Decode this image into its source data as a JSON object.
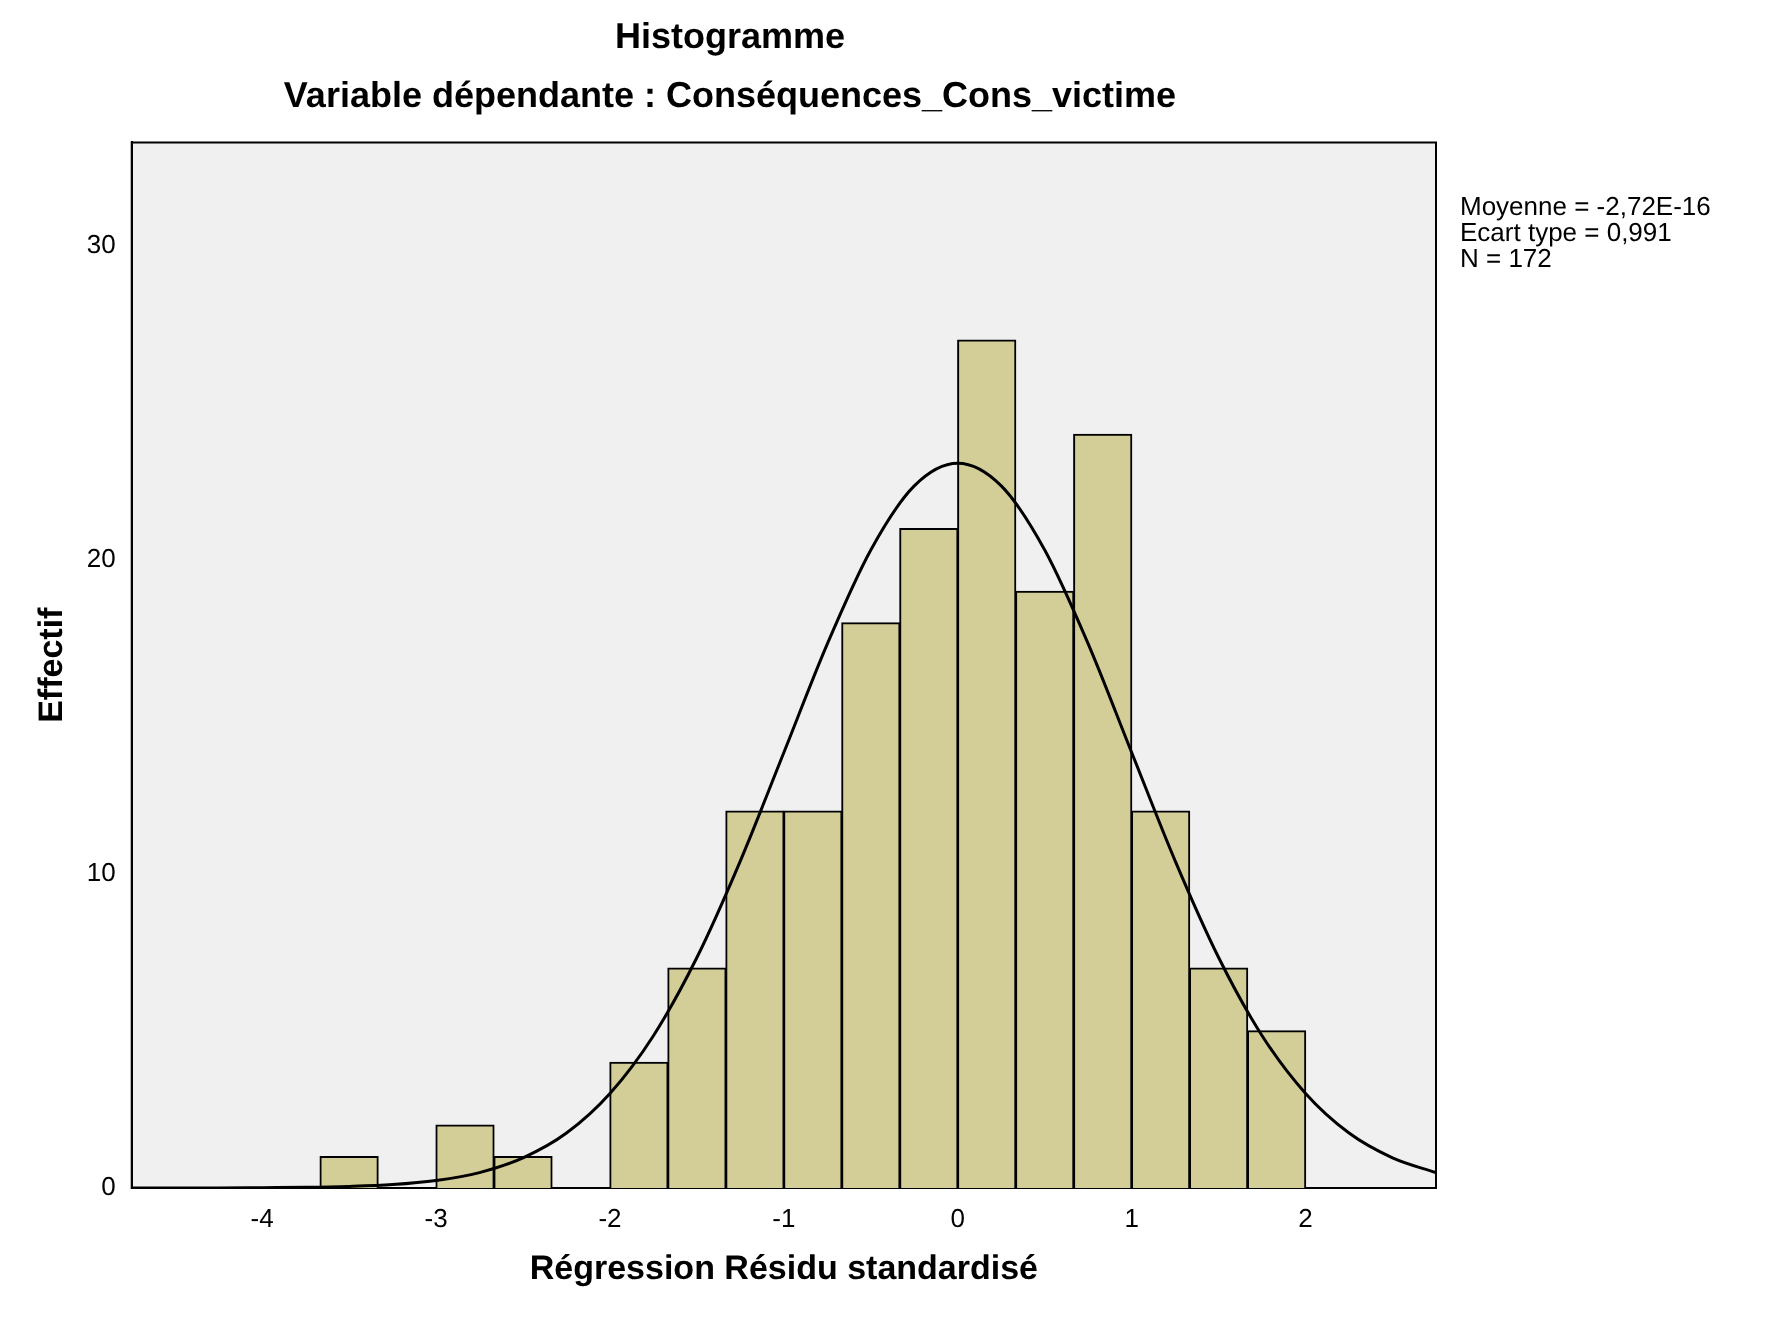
{
  "chart_data": {
    "type": "histogram",
    "title": "Histogramme",
    "subtitle": "Variable dépendante : Conséquences_Cons_victime",
    "xlabel": "Régression Résidu standardisé",
    "ylabel": "Effectif",
    "bins": [
      -3.667,
      -3.333,
      -3,
      -2.667,
      -2.333,
      -2,
      -1.667,
      -1.333,
      -1,
      -0.667,
      -0.333,
      0,
      0.333,
      0.667,
      1,
      1.333,
      1.667,
      2
    ],
    "values": [
      1,
      0,
      2,
      1,
      0,
      4,
      7,
      12,
      12,
      18,
      21,
      27,
      19,
      24,
      12,
      7,
      5
    ],
    "color": "#d3ce97",
    "series": [
      {
        "type": "line",
        "color": "#000000",
        "x": [
          -4.75,
          -4.5,
          -4.25,
          -4,
          -3.75,
          -3.5,
          -3.25,
          -3,
          -2.75,
          -2.5,
          -2.25,
          -2,
          -1.75,
          -1.5,
          -1.25,
          -1,
          -0.75,
          -0.5,
          -0.25,
          0,
          0.25,
          0.5,
          0.75,
          1,
          1.25,
          1.5,
          1.75,
          2,
          2.25,
          2.5,
          2.75
        ],
        "values": [
          0,
          0,
          0,
          0.01,
          0.02,
          0.05,
          0.11,
          0.24,
          0.49,
          0.96,
          1.75,
          3.01,
          4.85,
          7.34,
          10.42,
          13.87,
          17.33,
          20.32,
          22.36,
          23.08,
          22.36,
          20.32,
          17.33,
          13.87,
          10.42,
          7.34,
          4.85,
          3.01,
          1.75,
          0.96,
          0.49
        ]
      }
    ],
    "xlim": [
      -4.75,
      2.75
    ],
    "xticks": [
      -4,
      -3,
      -2,
      -1,
      0,
      1,
      2
    ],
    "ylim": [
      0,
      33.3
    ],
    "yticks": [
      0,
      10,
      20,
      30
    ],
    "grid": false,
    "legend": false,
    "marker": "none",
    "annotations": [
      "Moyenne = -2,72E-16",
      "Ecart type = 0,991",
      "N = 172"
    ]
  }
}
